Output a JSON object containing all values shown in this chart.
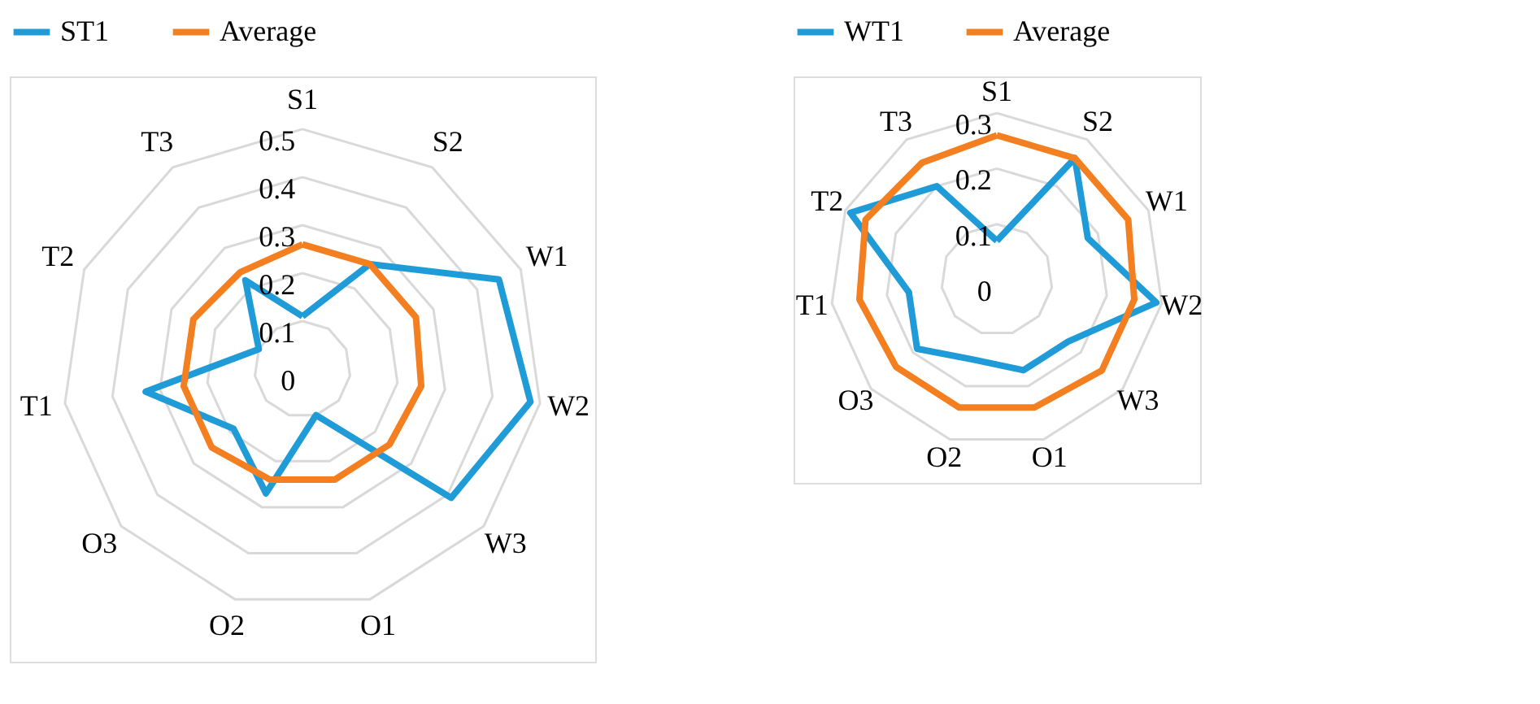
{
  "chart_data": [
    {
      "type": "radar",
      "categories": [
        "S1",
        "S2",
        "W1",
        "W2",
        "W3",
        "O1",
        "O2",
        "O3",
        "T1",
        "T2",
        "T3"
      ],
      "ylim": [
        0,
        0.5
      ],
      "yticks": [
        0,
        0.1,
        0.2,
        0.3,
        0.4,
        0.5
      ],
      "grid": true,
      "legend": "top",
      "series": [
        {
          "name": "ST1",
          "color": "#1f9bd7",
          "values": [
            0.11,
            0.26,
            0.45,
            0.48,
            0.41,
            0.1,
            0.27,
            0.19,
            0.33,
            0.1,
            0.22
          ]
        },
        {
          "name": "Average",
          "color": "#f47f20",
          "values": [
            0.26,
            0.26,
            0.26,
            0.25,
            0.24,
            0.24,
            0.24,
            0.25,
            0.25,
            0.25,
            0.24
          ]
        }
      ]
    },
    {
      "type": "radar",
      "categories": [
        "S1",
        "S2",
        "W1",
        "W2",
        "W3",
        "O1",
        "O2",
        "O3",
        "T1",
        "T2",
        "T3"
      ],
      "ylim": [
        0,
        0.3
      ],
      "yticks": [
        0,
        0.1,
        0.2,
        0.3
      ],
      "grid": true,
      "legend": "top",
      "series": [
        {
          "name": "WT1",
          "color": "#1f9bd7",
          "values": [
            0.07,
            0.26,
            0.18,
            0.29,
            0.17,
            0.17,
            0.15,
            0.19,
            0.16,
            0.29,
            0.2
          ]
        },
        {
          "name": "Average",
          "color": "#f47f20",
          "values": [
            0.26,
            0.26,
            0.26,
            0.25,
            0.25,
            0.24,
            0.24,
            0.24,
            0.25,
            0.26,
            0.25
          ]
        }
      ]
    }
  ]
}
